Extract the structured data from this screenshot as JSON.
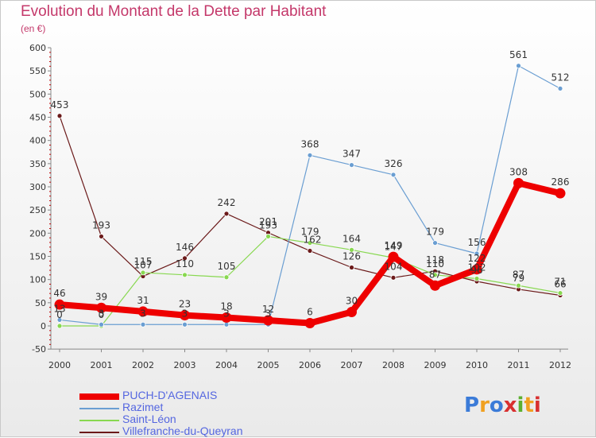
{
  "title": "Evolution du Montant de la Dette par Habitant",
  "subtitle": "(en €)",
  "logo_text": "Proxiti",
  "chart_data": {
    "type": "line",
    "x": [
      2000,
      2001,
      2002,
      2003,
      2004,
      2005,
      2006,
      2007,
      2008,
      2009,
      2010,
      2011,
      2012
    ],
    "ylim": [
      -50,
      600
    ],
    "yticks": [
      -50,
      0,
      50,
      100,
      150,
      200,
      250,
      300,
      350,
      400,
      450,
      500,
      550,
      600
    ],
    "grid": false,
    "legend_position": "bottom-left",
    "series": [
      {
        "name": "Villefranche-du-Queyran",
        "color": "#6b1a1a",
        "width": 1.2,
        "values": [
          453,
          193,
          107,
          146,
          242,
          201,
          162,
          126,
          104,
          118,
          96,
          79,
          66
        ],
        "labels": [
          "453",
          "193",
          "107",
          "146",
          "242",
          "201",
          "",
          "126",
          "104",
          "118",
          "96",
          "79",
          "66"
        ]
      },
      {
        "name": "Saint-Léon",
        "color": "#88d850",
        "width": 1.2,
        "values": [
          0,
          0,
          115,
          110,
          105,
          193,
          179,
          164,
          147,
          110,
          102,
          87,
          71
        ],
        "labels": [
          "0",
          "0",
          "115",
          "110",
          "105",
          "193",
          "179",
          "164",
          "147",
          "110",
          "102",
          "87",
          "71"
        ]
      },
      {
        "name": "Razimet",
        "color": "#6a9ed2",
        "width": 1.2,
        "values": [
          13,
          3,
          3,
          3,
          3,
          3,
          368,
          347,
          326,
          179,
          156,
          561,
          512
        ],
        "labels": [
          "13",
          "3",
          "3",
          "3",
          "3",
          "3",
          "368",
          "347",
          "326",
          "179",
          "156",
          "561",
          "512"
        ]
      },
      {
        "name": "PUCH-D'AGENAIS",
        "color": "#ee0000",
        "width": 8,
        "values": [
          46,
          39,
          31,
          23,
          18,
          12,
          6,
          30,
          149,
          87,
          122,
          308,
          286
        ],
        "labels": [
          "46",
          "39",
          "31",
          "23",
          "18",
          "12",
          "6",
          "30",
          "149",
          "87",
          "122",
          "308",
          "286"
        ]
      }
    ],
    "extra_labels": [
      "162"
    ]
  }
}
